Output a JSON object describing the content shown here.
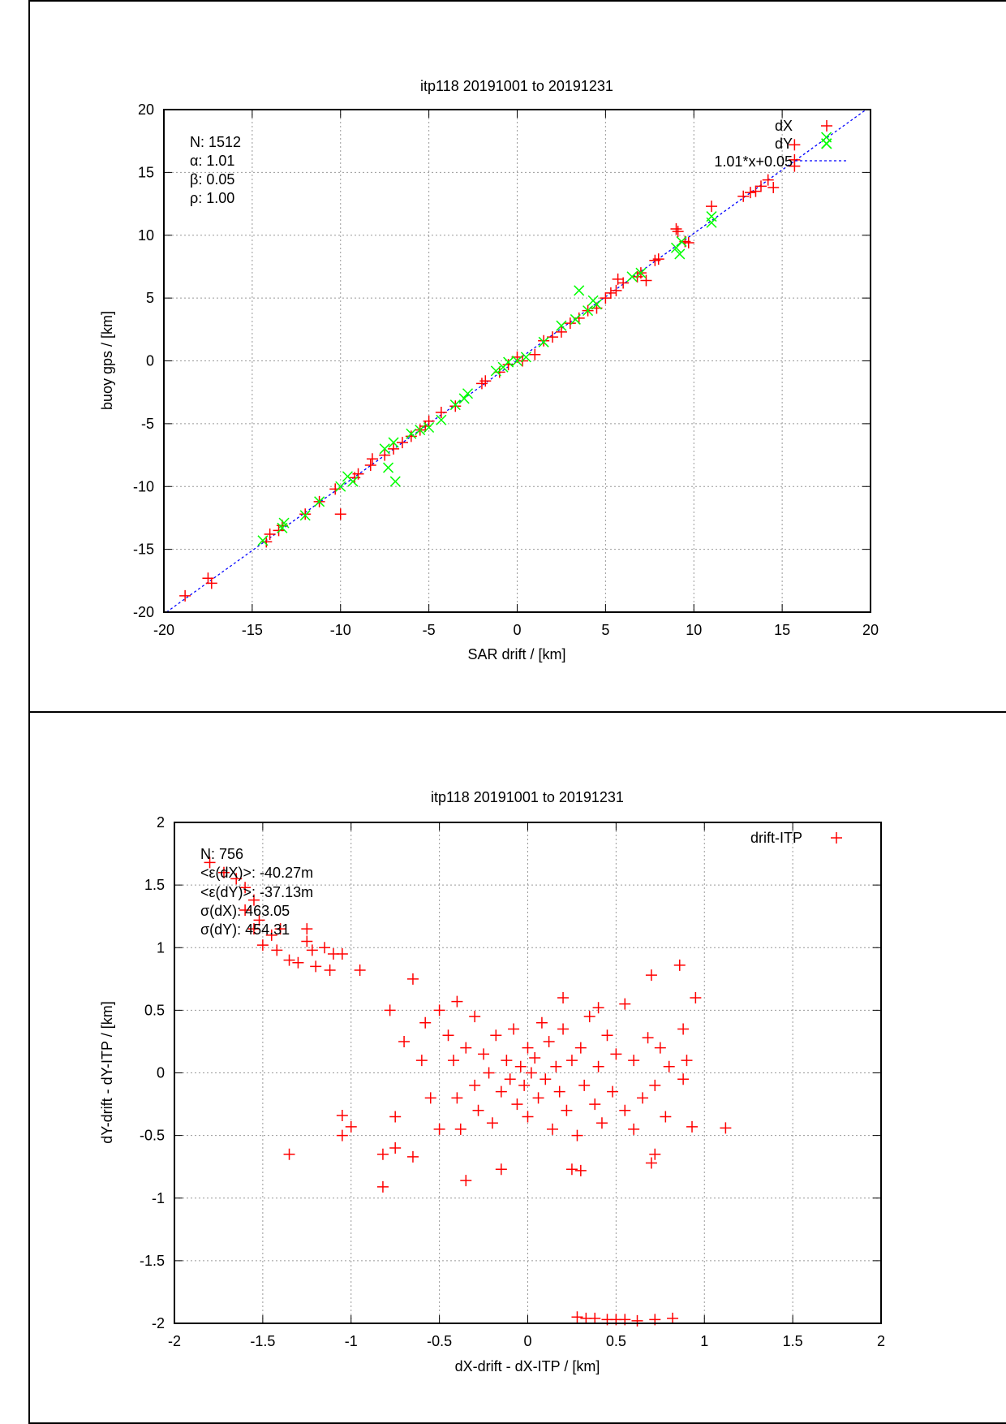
{
  "chart_data": [
    {
      "type": "scatter",
      "title": "itp118 20191001 to 20191231",
      "xlabel": "SAR drift / [km]",
      "ylabel": "buoy gps / [km]",
      "xlim": [
        -20,
        20
      ],
      "ylim": [
        -20,
        20
      ],
      "xticks": [
        -20,
        -15,
        -10,
        -5,
        0,
        5,
        10,
        15,
        20
      ],
      "yticks": [
        -20,
        -15,
        -10,
        -5,
        0,
        5,
        10,
        15,
        20
      ],
      "grid": true,
      "legend_position": "top-right",
      "stats": [
        "N: 1512",
        "α: 1.01",
        "β: 0.05",
        "ρ: 1.00"
      ],
      "fit": {
        "label": "1.01*x+0.05",
        "slope": 1.01,
        "intercept": 0.05,
        "color": "#0000ff"
      },
      "series": [
        {
          "name": "dX",
          "marker": "plus",
          "color": "#ff0000",
          "points": [
            [
              -18.8,
              -18.7
            ],
            [
              -17.5,
              -17.3
            ],
            [
              -17.3,
              -17.7
            ],
            [
              -14.2,
              -14.4
            ],
            [
              -14,
              -13.8
            ],
            [
              -13.5,
              -13.5
            ],
            [
              -13.3,
              -13.1
            ],
            [
              -12,
              -12.2
            ],
            [
              -11.2,
              -11.2
            ],
            [
              -10.3,
              -10.2
            ],
            [
              -10,
              -12.2
            ],
            [
              -9.2,
              -9.3
            ],
            [
              -9,
              -9
            ],
            [
              -8.3,
              -8.3
            ],
            [
              -8.2,
              -7.8
            ],
            [
              -7.5,
              -7.5
            ],
            [
              -7,
              -7
            ],
            [
              -6.5,
              -6.5
            ],
            [
              -6,
              -6
            ],
            [
              -5.5,
              -5.5
            ],
            [
              -5.2,
              -5.2
            ],
            [
              -5,
              -4.8
            ],
            [
              -4.3,
              -4.1
            ],
            [
              -3.5,
              -3.6
            ],
            [
              -2,
              -1.8
            ],
            [
              -1.8,
              -1.6
            ],
            [
              -1,
              -0.9
            ],
            [
              -0.5,
              -0.3
            ],
            [
              0,
              0.3
            ],
            [
              0.3,
              0
            ],
            [
              1,
              0.5
            ],
            [
              1.5,
              1.6
            ],
            [
              2,
              1.9
            ],
            [
              2.5,
              2.3
            ],
            [
              3,
              3
            ],
            [
              3.5,
              3.4
            ],
            [
              4,
              4
            ],
            [
              4.5,
              4.2
            ],
            [
              5,
              5
            ],
            [
              5.3,
              5.4
            ],
            [
              5.6,
              5.6
            ],
            [
              5.7,
              6.5
            ],
            [
              6,
              6.2
            ],
            [
              6.8,
              6.7
            ],
            [
              7,
              7
            ],
            [
              7.3,
              6.4
            ],
            [
              7.8,
              8
            ],
            [
              8,
              8.1
            ],
            [
              9,
              10.5
            ],
            [
              9.1,
              10.3
            ],
            [
              9.5,
              9.5
            ],
            [
              9.7,
              9.4
            ],
            [
              11,
              12.3
            ],
            [
              12.8,
              13.1
            ],
            [
              13.2,
              13.4
            ],
            [
              13.5,
              13.5
            ],
            [
              13.8,
              13.9
            ],
            [
              14.2,
              14.4
            ],
            [
              14.5,
              13.8
            ],
            [
              15.7,
              17.2
            ],
            [
              15.7,
              16
            ],
            [
              15.7,
              15.5
            ]
          ]
        },
        {
          "name": "dY",
          "marker": "cross",
          "color": "#00ff00",
          "points": [
            [
              -14.4,
              -14.3
            ],
            [
              -13.3,
              -13.3
            ],
            [
              -13.2,
              -12.9
            ],
            [
              -12,
              -12.3
            ],
            [
              -11.2,
              -11.2
            ],
            [
              -10,
              -10
            ],
            [
              -9.6,
              -9.2
            ],
            [
              -9.3,
              -9.6
            ],
            [
              -7.5,
              -7
            ],
            [
              -7.3,
              -8.5
            ],
            [
              -7,
              -6.5
            ],
            [
              -6.9,
              -9.6
            ],
            [
              -6,
              -5.8
            ],
            [
              -5.5,
              -5.5
            ],
            [
              -5,
              -5.3
            ],
            [
              -4.3,
              -4.7
            ],
            [
              -3.5,
              -3.5
            ],
            [
              -3,
              -3
            ],
            [
              -2.8,
              -2.6
            ],
            [
              -1.2,
              -0.8
            ],
            [
              -0.8,
              -0.5
            ],
            [
              -0.5,
              -0.1
            ],
            [
              0,
              0
            ],
            [
              0.5,
              0.3
            ],
            [
              1.5,
              1.5
            ],
            [
              2.5,
              2.8
            ],
            [
              3.3,
              3.3
            ],
            [
              3.5,
              5.6
            ],
            [
              4,
              4
            ],
            [
              4.3,
              4.8
            ],
            [
              4.5,
              4.5
            ],
            [
              6.5,
              6.7
            ],
            [
              7,
              7
            ],
            [
              9,
              9
            ],
            [
              9.2,
              8.5
            ],
            [
              9.3,
              9.5
            ],
            [
              11,
              11
            ],
            [
              11,
              11.5
            ],
            [
              17.5,
              17.8
            ],
            [
              17.5,
              17.3
            ]
          ]
        }
      ]
    },
    {
      "type": "scatter",
      "title": "itp118 20191001 to 20191231",
      "xlabel": "dX-drift - dX-ITP / [km]",
      "ylabel": "dY-drift - dY-ITP / [km]",
      "xlim": [
        -2,
        2
      ],
      "ylim": [
        -2,
        2
      ],
      "xticks": [
        -2,
        -1.5,
        -1,
        -0.5,
        0,
        0.5,
        1,
        1.5,
        2
      ],
      "yticks": [
        -2,
        -1.5,
        -1,
        -0.5,
        0,
        0.5,
        1,
        1.5,
        2
      ],
      "grid": true,
      "legend_position": "top-right",
      "stats": [
        "N: 756",
        "<ε(dX)>:  -40.27m",
        "<ε(dY)>: -37.13m",
        "σ(dX): 463.05",
        "σ(dY): 454.31"
      ],
      "series": [
        {
          "name": "drift-ITP",
          "marker": "plus",
          "color": "#ff0000",
          "points": [
            [
              -1.8,
              1.68
            ],
            [
              -1.72,
              1.6
            ],
            [
              -1.65,
              1.55
            ],
            [
              -1.6,
              1.48
            ],
            [
              -1.55,
              1.38
            ],
            [
              -1.52,
              1.22
            ],
            [
              -1.6,
              1.3
            ],
            [
              -1.45,
              1.1
            ],
            [
              -1.4,
              1.15
            ],
            [
              -1.55,
              1.15
            ],
            [
              -1.5,
              1.02
            ],
            [
              -1.42,
              0.98
            ],
            [
              -1.35,
              0.9
            ],
            [
              -1.3,
              0.88
            ],
            [
              -1.25,
              1.05
            ],
            [
              -1.22,
              0.98
            ],
            [
              -1.2,
              0.85
            ],
            [
              -1.15,
              1.0
            ],
            [
              -1.12,
              0.82
            ],
            [
              -1.1,
              0.95
            ],
            [
              -1.05,
              0.95
            ],
            [
              -0.95,
              0.82
            ],
            [
              -1.25,
              1.15
            ],
            [
              0.28,
              -1.95
            ],
            [
              0.33,
              -1.96
            ],
            [
              0.38,
              -1.96
            ],
            [
              0.45,
              -1.97
            ],
            [
              0.5,
              -1.97
            ],
            [
              0.55,
              -1.97
            ],
            [
              0.62,
              -1.98
            ],
            [
              0.72,
              -1.97
            ],
            [
              0.82,
              -1.96
            ],
            [
              -1.35,
              -0.65
            ],
            [
              -1.05,
              -0.34
            ],
            [
              -1.05,
              -0.5
            ],
            [
              -1.0,
              -0.43
            ],
            [
              -0.82,
              -0.91
            ],
            [
              -0.82,
              -0.65
            ],
            [
              -0.75,
              -0.6
            ],
            [
              -0.65,
              -0.67
            ],
            [
              -0.65,
              0.75
            ],
            [
              -0.78,
              0.5
            ],
            [
              -0.75,
              -0.35
            ],
            [
              -0.7,
              0.25
            ],
            [
              0.7,
              0.78
            ],
            [
              0.86,
              0.86
            ],
            [
              0.95,
              0.6
            ],
            [
              1.12,
              -0.44
            ],
            [
              0.93,
              -0.43
            ],
            [
              0.7,
              -0.72
            ],
            [
              0.72,
              -0.65
            ],
            [
              -0.35,
              -0.86
            ],
            [
              -0.15,
              -0.77
            ],
            [
              0.25,
              -0.77
            ],
            [
              0.3,
              -0.78
            ],
            [
              0.55,
              0.55
            ],
            [
              -0.4,
              0.57
            ],
            [
              -0.5,
              0.5
            ],
            [
              0.2,
              0.6
            ],
            [
              0.4,
              0.52
            ],
            [
              0.88,
              0.35
            ],
            [
              0.9,
              0.1
            ],
            [
              0.88,
              -0.05
            ],
            [
              0.75,
              0.2
            ],
            [
              0.6,
              -0.45
            ],
            [
              -0.45,
              0.3
            ],
            [
              -0.42,
              0.1
            ],
            [
              -0.4,
              -0.2
            ],
            [
              -0.38,
              -0.45
            ],
            [
              -0.35,
              0.2
            ],
            [
              -0.3,
              0.45
            ],
            [
              -0.3,
              -0.1
            ],
            [
              -0.28,
              -0.3
            ],
            [
              -0.25,
              0.15
            ],
            [
              -0.22,
              0.0
            ],
            [
              -0.2,
              -0.4
            ],
            [
              -0.18,
              0.3
            ],
            [
              -0.15,
              -0.15
            ],
            [
              -0.12,
              0.1
            ],
            [
              -0.1,
              -0.05
            ],
            [
              -0.08,
              0.35
            ],
            [
              -0.06,
              -0.25
            ],
            [
              -0.04,
              0.05
            ],
            [
              -0.02,
              -0.1
            ],
            [
              0.0,
              0.2
            ],
            [
              0.0,
              -0.35
            ],
            [
              0.02,
              0.0
            ],
            [
              0.04,
              0.12
            ],
            [
              0.06,
              -0.2
            ],
            [
              0.08,
              0.4
            ],
            [
              0.1,
              -0.05
            ],
            [
              0.12,
              0.25
            ],
            [
              0.14,
              -0.45
            ],
            [
              0.16,
              0.05
            ],
            [
              0.18,
              -0.15
            ],
            [
              0.2,
              0.35
            ],
            [
              0.22,
              -0.3
            ],
            [
              0.25,
              0.1
            ],
            [
              0.28,
              -0.5
            ],
            [
              0.3,
              0.2
            ],
            [
              0.32,
              -0.1
            ],
            [
              0.35,
              0.45
            ],
            [
              0.38,
              -0.25
            ],
            [
              0.4,
              0.05
            ],
            [
              0.42,
              -0.4
            ],
            [
              0.45,
              0.3
            ],
            [
              0.48,
              -0.15
            ],
            [
              0.5,
              0.15
            ],
            [
              0.55,
              -0.3
            ],
            [
              0.6,
              0.1
            ],
            [
              0.65,
              -0.2
            ],
            [
              0.68,
              0.28
            ],
            [
              -0.55,
              -0.2
            ],
            [
              -0.6,
              0.1
            ],
            [
              -0.5,
              -0.45
            ],
            [
              -0.58,
              0.4
            ],
            [
              0.72,
              -0.1
            ],
            [
              0.8,
              0.05
            ],
            [
              0.78,
              -0.35
            ]
          ]
        }
      ]
    }
  ]
}
